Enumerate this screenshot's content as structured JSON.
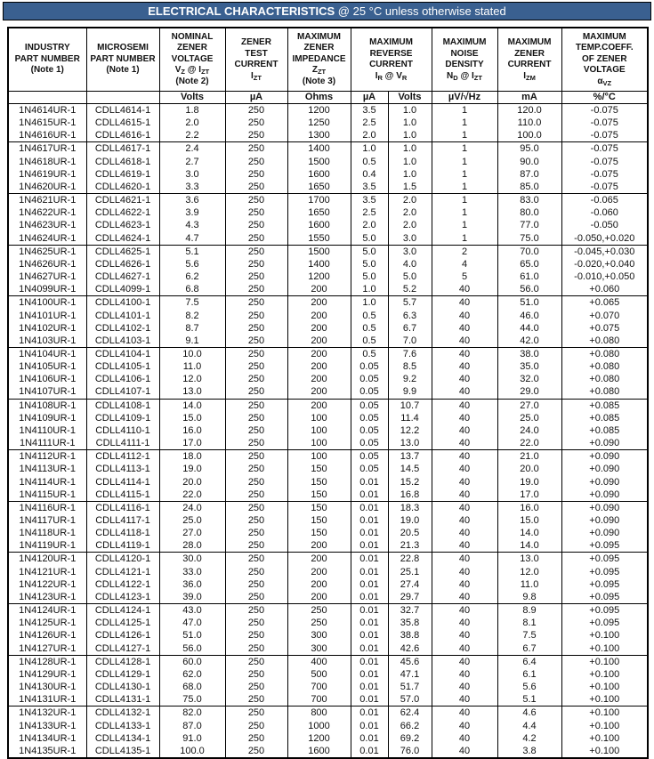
{
  "title": {
    "heading": "ELECTRICAL CHARACTERISTICS",
    "condition": " @ 25 °C unless otherwise stated"
  },
  "colors": {
    "title_bar_bg": "#3A6090",
    "title_bar_text": "#FFFFFF",
    "table_border": "#000000"
  },
  "table": {
    "header_cells": [
      {
        "id": "industry-part-number",
        "text": "INDUSTRY\nPART NUMBER\n(Note 1)",
        "colspan": 1
      },
      {
        "id": "microsemi-part-number",
        "text": "MICROSEMI\nPART NUMBER\n(Note 1)",
        "colspan": 1
      },
      {
        "id": "nominal-zener-voltage",
        "text": "NOMINAL\nZENER\nVOLTAGE\nV_{Z} @ I_{ZT}\n(Note 2)",
        "colspan": 1
      },
      {
        "id": "zener-test-current",
        "text": "ZENER\nTEST\nCURRENT\nI_{ZT}",
        "colspan": 1
      },
      {
        "id": "maximum-zener-impedance",
        "text": "MAXIMUM\nZENER\nIMPEDANCE\nZ_{ZT}\n(Note 3)",
        "colspan": 1
      },
      {
        "id": "maximum-reverse-current",
        "text": "MAXIMUM\nREVERSE\nCURRENT\nI_{R} @ V_{R}",
        "colspan": 2
      },
      {
        "id": "maximum-noise-density",
        "text": "MAXIMUM\nNOISE\nDENSITY\nN_{D} @ I_{ZT}",
        "colspan": 1
      },
      {
        "id": "maximum-zener-current",
        "text": "MAXIMUM\nZENER\nCURRENT\nI_{ZM}",
        "colspan": 1
      },
      {
        "id": "maximum-temp-coeff",
        "text": "MAXIMUM\nTEMP.COEFF.\nOF ZENER\nVOLTAGE\nα_{VZ}",
        "colspan": 1
      }
    ],
    "units": [
      "",
      "",
      "Volts",
      "µA",
      "Ohms",
      "µA",
      "Volts",
      "µV/√Hz",
      "mA",
      "%/°C"
    ],
    "column_fields": [
      "industry_part_number",
      "microsemi_part_number",
      "nominal_zener_voltage_volts",
      "zener_test_current_uA",
      "max_zener_impedance_ohms",
      "max_reverse_current_uA",
      "reverse_voltage_volts",
      "max_noise_density_uV_rtHz",
      "max_zener_current_mA",
      "temp_coeff_pct_per_degC"
    ],
    "row_groups": [
      [
        [
          "1N4614UR-1",
          "CDLL4614-1",
          "1.8",
          "250",
          "1200",
          "3.5",
          "1.0",
          "1",
          "120.0",
          "-0.075"
        ],
        [
          "1N4615UR-1",
          "CDLL4615-1",
          "2.0",
          "250",
          "1250",
          "2.5",
          "1.0",
          "1",
          "110.0",
          "-0.075"
        ],
        [
          "1N4616UR-1",
          "CDLL4616-1",
          "2.2",
          "250",
          "1300",
          "2.0",
          "1.0",
          "1",
          "100.0",
          "-0.075"
        ]
      ],
      [
        [
          "1N4617UR-1",
          "CDLL4617-1",
          "2.4",
          "250",
          "1400",
          "1.0",
          "1.0",
          "1",
          "95.0",
          "-0.075"
        ],
        [
          "1N4618UR-1",
          "CDLL4618-1",
          "2.7",
          "250",
          "1500",
          "0.5",
          "1.0",
          "1",
          "90.0",
          "-0.075"
        ],
        [
          "1N4619UR-1",
          "CDLL4619-1",
          "3.0",
          "250",
          "1600",
          "0.4",
          "1.0",
          "1",
          "87.0",
          "-0.075"
        ],
        [
          "1N4620UR-1",
          "CDLL4620-1",
          "3.3",
          "250",
          "1650",
          "3.5",
          "1.5",
          "1",
          "85.0",
          "-0.075"
        ]
      ],
      [
        [
          "1N4621UR-1",
          "CDLL4621-1",
          "3.6",
          "250",
          "1700",
          "3.5",
          "2.0",
          "1",
          "83.0",
          "-0.065"
        ],
        [
          "1N4622UR-1",
          "CDLL4622-1",
          "3.9",
          "250",
          "1650",
          "2.5",
          "2.0",
          "1",
          "80.0",
          "-0.060"
        ],
        [
          "1N4623UR-1",
          "CDLL4623-1",
          "4.3",
          "250",
          "1600",
          "2.0",
          "2.0",
          "1",
          "77.0",
          "-0.050"
        ],
        [
          "1N4624UR-1",
          "CDLL4624-1",
          "4.7",
          "250",
          "1550",
          "5.0",
          "3.0",
          "1",
          "75.0",
          "-0.050,+0.020"
        ]
      ],
      [
        [
          "1N4625UR-1",
          "CDLL4625-1",
          "5.1",
          "250",
          "1500",
          "5.0",
          "3.0",
          "2",
          "70.0",
          "-0.045,+0.030"
        ],
        [
          "1N4626UR-1",
          "CDLL4626-1",
          "5.6",
          "250",
          "1400",
          "5.0",
          "4.0",
          "4",
          "65.0",
          "-0.020,+0.040"
        ],
        [
          "1N4627UR-1",
          "CDLL4627-1",
          "6.2",
          "250",
          "1200",
          "5.0",
          "5.0",
          "5",
          "61.0",
          "-0.010,+0.050"
        ],
        [
          "1N4099UR-1",
          "CDLL4099-1",
          "6.8",
          "250",
          "200",
          "1.0",
          "5.2",
          "40",
          "56.0",
          "+0.060"
        ]
      ],
      [
        [
          "1N4100UR-1",
          "CDLL4100-1",
          "7.5",
          "250",
          "200",
          "1.0",
          "5.7",
          "40",
          "51.0",
          "+0.065"
        ],
        [
          "1N4101UR-1",
          "CDLL4101-1",
          "8.2",
          "250",
          "200",
          "0.5",
          "6.3",
          "40",
          "46.0",
          "+0.070"
        ],
        [
          "1N4102UR-1",
          "CDLL4102-1",
          "8.7",
          "250",
          "200",
          "0.5",
          "6.7",
          "40",
          "44.0",
          "+0.075"
        ],
        [
          "1N4103UR-1",
          "CDLL4103-1",
          "9.1",
          "250",
          "200",
          "0.5",
          "7.0",
          "40",
          "42.0",
          "+0.080"
        ]
      ],
      [
        [
          "1N4104UR-1",
          "CDLL4104-1",
          "10.0",
          "250",
          "200",
          "0.5",
          "7.6",
          "40",
          "38.0",
          "+0.080"
        ],
        [
          "1N4105UR-1",
          "CDLL4105-1",
          "11.0",
          "250",
          "200",
          "0.05",
          "8.5",
          "40",
          "35.0",
          "+0.080"
        ],
        [
          "1N4106UR-1",
          "CDLL4106-1",
          "12.0",
          "250",
          "200",
          "0.05",
          "9.2",
          "40",
          "32.0",
          "+0.080"
        ],
        [
          "1N4107UR-1",
          "CDLL4107-1",
          "13.0",
          "250",
          "200",
          "0.05",
          "9.9",
          "40",
          "29.0",
          "+0.080"
        ]
      ],
      [
        [
          "1N4108UR-1",
          "CDLL4108-1",
          "14.0",
          "250",
          "200",
          "0.05",
          "10.7",
          "40",
          "27.0",
          "+0.085"
        ],
        [
          "1N4109UR-1",
          "CDLL4109-1",
          "15.0",
          "250",
          "100",
          "0.05",
          "11.4",
          "40",
          "25.0",
          "+0.085"
        ],
        [
          "1N4110UR-1",
          "CDLL4110-1",
          "16.0",
          "250",
          "100",
          "0.05",
          "12.2",
          "40",
          "24.0",
          "+0.085"
        ],
        [
          "1N4111UR-1",
          "CDLL4111-1",
          "17.0",
          "250",
          "100",
          "0.05",
          "13.0",
          "40",
          "22.0",
          "+0.090"
        ]
      ],
      [
        [
          "1N4112UR-1",
          "CDLL4112-1",
          "18.0",
          "250",
          "100",
          "0.05",
          "13.7",
          "40",
          "21.0",
          "+0.090"
        ],
        [
          "1N4113UR-1",
          "CDLL4113-1",
          "19.0",
          "250",
          "150",
          "0.05",
          "14.5",
          "40",
          "20.0",
          "+0.090"
        ],
        [
          "1N4114UR-1",
          "CDLL4114-1",
          "20.0",
          "250",
          "150",
          "0.01",
          "15.2",
          "40",
          "19.0",
          "+0.090"
        ],
        [
          "1N4115UR-1",
          "CDLL4115-1",
          "22.0",
          "250",
          "150",
          "0.01",
          "16.8",
          "40",
          "17.0",
          "+0.090"
        ]
      ],
      [
        [
          "1N4116UR-1",
          "CDLL4116-1",
          "24.0",
          "250",
          "150",
          "0.01",
          "18.3",
          "40",
          "16.0",
          "+0.090"
        ],
        [
          "1N4117UR-1",
          "CDLL4117-1",
          "25.0",
          "250",
          "150",
          "0.01",
          "19.0",
          "40",
          "15.0",
          "+0.090"
        ],
        [
          "1N4118UR-1",
          "CDLL4118-1",
          "27.0",
          "250",
          "150",
          "0.01",
          "20.5",
          "40",
          "14.0",
          "+0.090"
        ],
        [
          "1N4119UR-1",
          "CDLL4119-1",
          "28.0",
          "250",
          "200",
          "0.01",
          "21.3",
          "40",
          "14.0",
          "+0.095"
        ]
      ],
      [
        [
          "1N4120UR-1",
          "CDLL4120-1",
          "30.0",
          "250",
          "200",
          "0.01",
          "22.8",
          "40",
          "13.0",
          "+0.095"
        ],
        [
          "1N4121UR-1",
          "CDLL4121-1",
          "33.0",
          "250",
          "200",
          "0.01",
          "25.1",
          "40",
          "12.0",
          "+0.095"
        ],
        [
          "1N4122UR-1",
          "CDLL4122-1",
          "36.0",
          "250",
          "200",
          "0.01",
          "27.4",
          "40",
          "11.0",
          "+0.095"
        ],
        [
          "1N4123UR-1",
          "CDLL4123-1",
          "39.0",
          "250",
          "200",
          "0.01",
          "29.7",
          "40",
          "9.8",
          "+0.095"
        ]
      ],
      [
        [
          "1N4124UR-1",
          "CDLL4124-1",
          "43.0",
          "250",
          "250",
          "0.01",
          "32.7",
          "40",
          "8.9",
          "+0.095"
        ],
        [
          "1N4125UR-1",
          "CDLL4125-1",
          "47.0",
          "250",
          "250",
          "0.01",
          "35.8",
          "40",
          "8.1",
          "+0.095"
        ],
        [
          "1N4126UR-1",
          "CDLL4126-1",
          "51.0",
          "250",
          "300",
          "0.01",
          "38.8",
          "40",
          "7.5",
          "+0.100"
        ],
        [
          "1N4127UR-1",
          "CDLL4127-1",
          "56.0",
          "250",
          "300",
          "0.01",
          "42.6",
          "40",
          "6.7",
          "+0.100"
        ]
      ],
      [
        [
          "1N4128UR-1",
          "CDLL4128-1",
          "60.0",
          "250",
          "400",
          "0.01",
          "45.6",
          "40",
          "6.4",
          "+0.100"
        ],
        [
          "1N4129UR-1",
          "CDLL4129-1",
          "62.0",
          "250",
          "500",
          "0.01",
          "47.1",
          "40",
          "6.1",
          "+0.100"
        ],
        [
          "1N4130UR-1",
          "CDLL4130-1",
          "68.0",
          "250",
          "700",
          "0.01",
          "51.7",
          "40",
          "5.6",
          "+0.100"
        ],
        [
          "1N4131UR-1",
          "CDLL4131-1",
          "75.0",
          "250",
          "700",
          "0.01",
          "57.0",
          "40",
          "5.1",
          "+0.100"
        ]
      ],
      [
        [
          "1N4132UR-1",
          "CDLL4132-1",
          "82.0",
          "250",
          "800",
          "0.01",
          "62.4",
          "40",
          "4.6",
          "+0.100"
        ],
        [
          "1N4133UR-1",
          "CDLL4133-1",
          "87.0",
          "250",
          "1000",
          "0.01",
          "66.2",
          "40",
          "4.4",
          "+0.100"
        ],
        [
          "1N4134UR-1",
          "CDLL4134-1",
          "91.0",
          "250",
          "1200",
          "0.01",
          "69.2",
          "40",
          "4.2",
          "+0.100"
        ],
        [
          "1N4135UR-1",
          "CDLL4135-1",
          "100.0",
          "250",
          "1600",
          "0.01",
          "76.0",
          "40",
          "3.8",
          "+0.100"
        ]
      ]
    ]
  }
}
